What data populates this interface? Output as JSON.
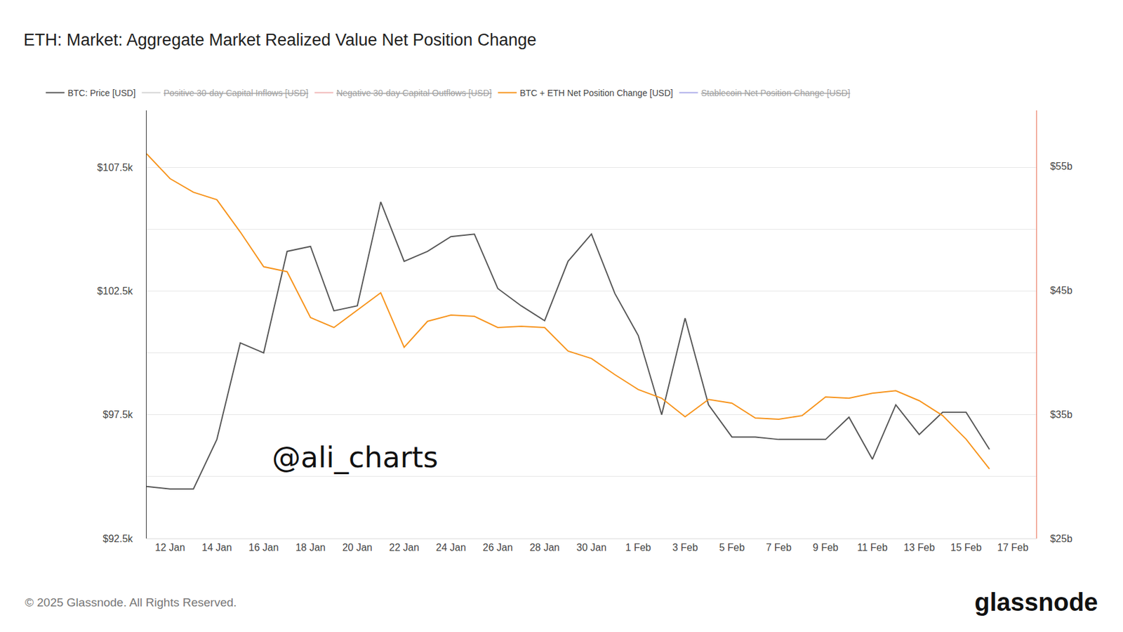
{
  "chart_data": {
    "type": "line",
    "title": "ETH: Market: Aggregate Market Realized Value Net Position Change",
    "footer": "© 2025 Glassnode. All Rights Reserved.",
    "brand": "glassnode",
    "annotations": [
      "@ali_charts"
    ],
    "grid": true,
    "legend": "top",
    "categories": [
      null,
      "12 Jan",
      null,
      "14 Jan",
      null,
      "16 Jan",
      null,
      "18 Jan",
      null,
      "20 Jan",
      null,
      "22 Jan",
      null,
      "24 Jan",
      null,
      "26 Jan",
      null,
      "28 Jan",
      null,
      "30 Jan",
      null,
      "1 Feb",
      null,
      "3 Feb",
      null,
      "5 Feb",
      null,
      "7 Feb",
      null,
      "9 Feb",
      null,
      "11 Feb",
      null,
      "13 Feb",
      null,
      "15 Feb",
      null,
      "17 Feb",
      null
    ],
    "ylim": [
      92.5,
      109.8
    ],
    "yticks": [
      {
        "value": 92.5,
        "label": "$92.5k"
      },
      {
        "value": 97.5,
        "label": "$97.5k"
      },
      {
        "value": 102.5,
        "label": "$102.5k"
      },
      {
        "value": 107.5,
        "label": "$107.5k"
      }
    ],
    "y2lim": [
      25,
      59.5
    ],
    "y2ticks": [
      {
        "value": 25,
        "label": "$25b"
      },
      {
        "value": 35,
        "label": "$35b"
      },
      {
        "value": 45,
        "label": "$45b"
      },
      {
        "value": 55,
        "label": "$55b"
      }
    ],
    "series": [
      {
        "name": "BTC: Price [USD]",
        "color": "#555555",
        "axis": "y",
        "values": [
          94.6,
          94.5,
          94.5,
          96.5,
          100.4,
          100.0,
          104.1,
          104.3,
          101.7,
          101.9,
          106.1,
          103.7,
          104.1,
          104.7,
          104.8,
          102.6,
          101.9,
          101.3,
          103.7,
          104.8,
          102.4,
          100.7,
          97.5,
          101.4,
          97.9,
          96.6,
          96.6,
          96.5,
          96.5,
          96.5,
          97.4,
          95.7,
          97.9,
          96.7,
          97.6,
          97.6,
          96.1,
          null,
          null
        ]
      },
      {
        "name": "Positive 30-day Capital Inflows [USD]",
        "color": "#aaaaaa",
        "axis": "y2",
        "values": [
          null,
          null,
          null,
          null,
          null,
          null,
          null,
          null,
          null,
          null,
          null,
          null,
          null,
          null,
          null,
          null,
          null,
          null,
          null,
          null,
          null,
          null,
          null,
          null,
          null,
          null,
          null,
          null,
          null,
          null,
          null,
          null,
          null,
          null,
          null,
          null,
          null,
          null,
          null
        ]
      },
      {
        "name": "Negative 30-day Capital Outflows [USD]",
        "color": "#e57373",
        "axis": "y2",
        "values": [
          null,
          null,
          null,
          null,
          null,
          null,
          null,
          null,
          null,
          null,
          null,
          null,
          null,
          null,
          null,
          null,
          null,
          null,
          null,
          null,
          null,
          null,
          null,
          null,
          null,
          null,
          null,
          null,
          null,
          null,
          null,
          null,
          null,
          null,
          null,
          null,
          null,
          null,
          null
        ]
      },
      {
        "name": "BTC + ETH Net Position Change [USD]",
        "color": "#f7931a",
        "axis": "y2",
        "values": [
          56.0,
          54.0,
          52.9,
          52.3,
          49.7,
          46.9,
          46.5,
          42.8,
          42.0,
          43.4,
          44.8,
          40.4,
          42.5,
          43.0,
          42.9,
          42.0,
          42.1,
          42.0,
          40.1,
          39.5,
          38.2,
          37.0,
          36.3,
          34.8,
          36.2,
          35.9,
          34.7,
          34.6,
          34.9,
          36.4,
          36.3,
          36.7,
          36.9,
          36.1,
          34.9,
          33.0,
          30.6,
          null,
          null
        ]
      },
      {
        "name": "Stablecoin Net Position Change [USD]",
        "color": "#5c5cd6",
        "axis": "y2",
        "values": [
          null,
          null,
          null,
          null,
          null,
          null,
          null,
          null,
          null,
          null,
          null,
          null,
          null,
          null,
          null,
          null,
          null,
          null,
          null,
          null,
          null,
          null,
          null,
          null,
          null,
          null,
          null,
          null,
          null,
          null,
          null,
          null,
          null,
          null,
          null,
          null,
          null,
          null,
          null
        ]
      }
    ]
  }
}
